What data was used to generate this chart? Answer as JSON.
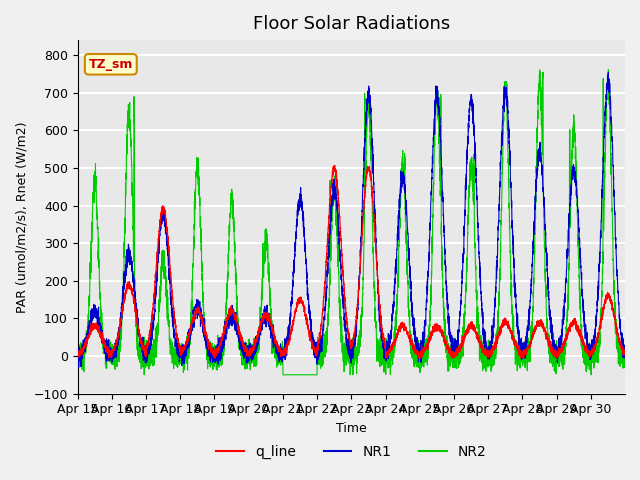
{
  "title": "Floor Solar Radiations",
  "xlabel": "Time",
  "ylabel": "PAR (umol/m2/s), Rnet (W/m2)",
  "ylim": [
    -100,
    840
  ],
  "yticks": [
    -100,
    0,
    100,
    200,
    300,
    400,
    500,
    600,
    700,
    800
  ],
  "xtick_labels": [
    "Apr 15",
    "Apr 16",
    "Apr 17",
    "Apr 18",
    "Apr 19",
    "Apr 20",
    "Apr 21",
    "Apr 22",
    "Apr 23",
    "Apr 24",
    "Apr 25",
    "Apr 26",
    "Apr 27",
    "Apr 28",
    "Apr 29",
    "Apr 30"
  ],
  "color_qline": "#ff0000",
  "color_NR1": "#0000cc",
  "color_NR2": "#00cc00",
  "legend_label_qline": "q_line",
  "legend_label_NR1": "NR1",
  "legend_label_NR2": "NR2",
  "annotation_text": "TZ_sm",
  "annotation_bg": "#ffffcc",
  "annotation_border": "#cc8800",
  "background_color": "#e8e8e8",
  "grid_color": "#ffffff",
  "title_fontsize": 13,
  "axis_fontsize": 9,
  "legend_fontsize": 10,
  "n_points_per_day": 288,
  "NR2_peaks": [
    465,
    660,
    250,
    505,
    415,
    300,
    0,
    445,
    670,
    515,
    695,
    510,
    710,
    735,
    610,
    730
  ],
  "NR1_peaks": [
    120,
    270,
    380,
    130,
    115,
    110,
    420,
    445,
    695,
    475,
    695,
    680,
    705,
    540,
    495,
    730
  ],
  "qline_peaks": [
    80,
    190,
    395,
    120,
    120,
    110,
    150,
    500,
    500,
    80,
    80,
    80,
    90,
    90,
    90,
    160
  ],
  "night_baseline_NR1": -30,
  "night_baseline_NR2": -50,
  "night_baseline_qline": -5,
  "fig_bg_color": "#f0f0f0"
}
